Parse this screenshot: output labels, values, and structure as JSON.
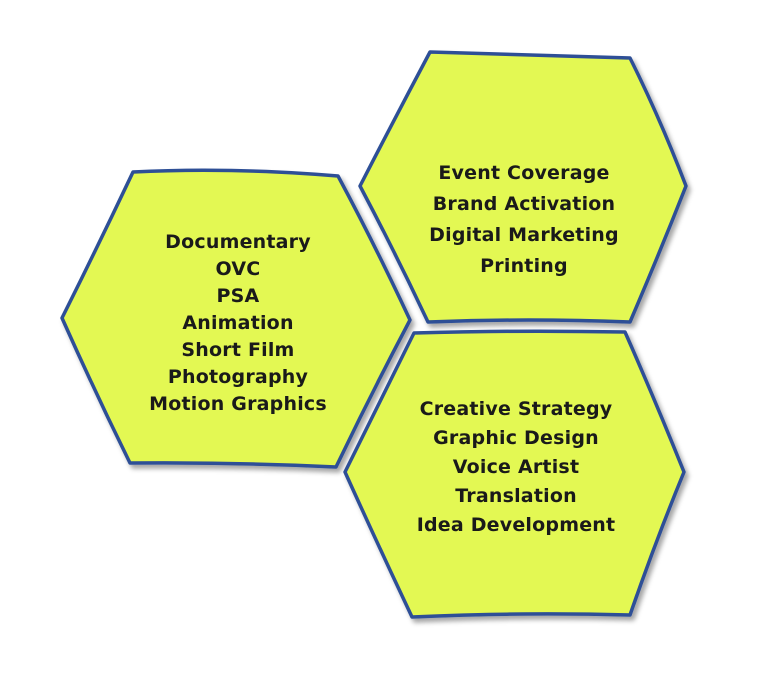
{
  "colors": {
    "hex_fill": "#e3f852",
    "hex_stroke": "#2d4f96",
    "text": "#1a1a1a"
  },
  "hexagons": {
    "left": {
      "items": [
        "Documentary",
        "OVC",
        "PSA",
        "Animation",
        "Short Film",
        "Photography",
        "Motion Graphics"
      ]
    },
    "top_right": {
      "items": [
        "Event Coverage",
        "Brand Activation",
        "Digital Marketing",
        "Printing"
      ]
    },
    "bottom_right": {
      "items": [
        "Creative Strategy",
        "Graphic Design",
        "Voice Artist",
        "Translation",
        "Idea Development"
      ]
    }
  }
}
